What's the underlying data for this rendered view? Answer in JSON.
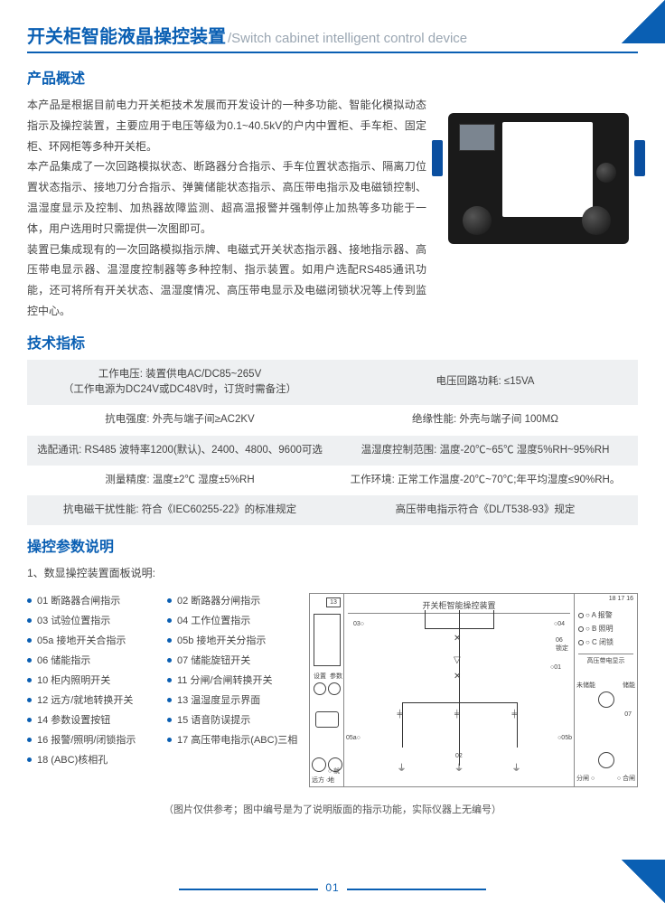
{
  "title": {
    "cn": "开关柜智能液晶操控装置",
    "en": "/Switch cabinet intelligent control device"
  },
  "sections": {
    "overview": "产品概述",
    "specs": "技术指标",
    "params": "操控参数说明"
  },
  "overview": {
    "p1": "本产品是根据目前电力开关柜技术发展而开发设计的一种多功能、智能化模拟动态指示及操控装置，主要应用于电压等级为0.1~40.5kV的户内中置柜、手车柜、固定柜、环网柜等多种开关柜。",
    "p2": "本产品集成了一次回路模拟状态、断路器分合指示、手车位置状态指示、隔离刀位置状态指示、接地刀分合指示、弹簧储能状态指示、高压带电指示及电磁锁控制、温湿度显示及控制、加热器故障监测、超高温报警并强制停止加热等多功能于一体，用户选用时只需提供一次图即可。",
    "p3": "装置已集成现有的一次回路模拟指示牌、电磁式开关状态指示器、接地指示器、高压带电显示器、温湿度控制器等多种控制、指示装置。如用户选配RS485通讯功能，还可将所有开关状态、温湿度情况、高压带电显示及电磁闭锁状况等上传到监控中心。"
  },
  "specs": [
    [
      "工作电压: 装置供电AC/DC85~265V\n（工作电源为DC24V或DC48V时，订货时需备注）",
      "电压回路功耗: ≤15VA"
    ],
    [
      "抗电强度: 外壳与端子间≥AC2KV",
      "绝缘性能: 外壳与端子间 100MΩ"
    ],
    [
      "选配通讯: RS485 波特率1200(默认)、2400、4800、9600可选",
      "温湿度控制范围: 温度-20℃~65℃ 湿度5%RH~95%RH"
    ],
    [
      "测量精度: 温度±2℃ 湿度±5%RH",
      "工作环境: 正常工作温度-20℃~70℃;年平均湿度≤90%RH。"
    ],
    [
      "抗电磁干扰性能: 符合《IEC60255-22》的标准规定",
      "高压带电指示符合《DL/T538-93》规定"
    ]
  ],
  "params_intro": "1、数显操控装置面板说明:",
  "params": [
    "01 断路器合闸指示",
    "02 断路器分闸指示",
    "03 试验位置指示",
    "04 工作位置指示",
    "05a 接地开关合指示",
    "05b 接地开关分指示",
    "06 储能指示",
    "07 储能旋钮开关",
    "10 柜内照明开关",
    "11 分闸/合闸转换开关",
    "12 远方/就地转换开关",
    "13 温湿度显示界面",
    "14 参数设置按钮",
    "15 语音防误提示",
    "16 报警/照明/闭锁指示",
    "17 高压带电指示(ABC)三相",
    "18 (ABC)核相孔",
    ""
  ],
  "diagram": {
    "title": "开关柜智能操控装置",
    "left_top": "13",
    "left_labels": [
      "远方",
      "就地",
      "设置",
      "参数"
    ],
    "center_labels": {
      "n03": "03○",
      "n04": "○04",
      "n06": "06\n锁定",
      "n01": "○01",
      "n05a": "05a○",
      "n05b": "○05b",
      "n02": "02",
      "bl": "远方 ○",
      "br": "○ 就地"
    },
    "right": {
      "row18": "18  17 16",
      "a": "○ A 报警",
      "b": "○ B 照明",
      "c": "○ C 闭锁",
      "hv": "高压带电显示",
      "store_no": "未储能",
      "store_yes": "储能",
      "n07": "07",
      "open": "分闸 ○",
      "close": "○ 合闸"
    }
  },
  "footer_note": "（图片仅供参考；图中编号是为了说明版面的指示功能，实际仪器上无编号）",
  "page_num": "01"
}
